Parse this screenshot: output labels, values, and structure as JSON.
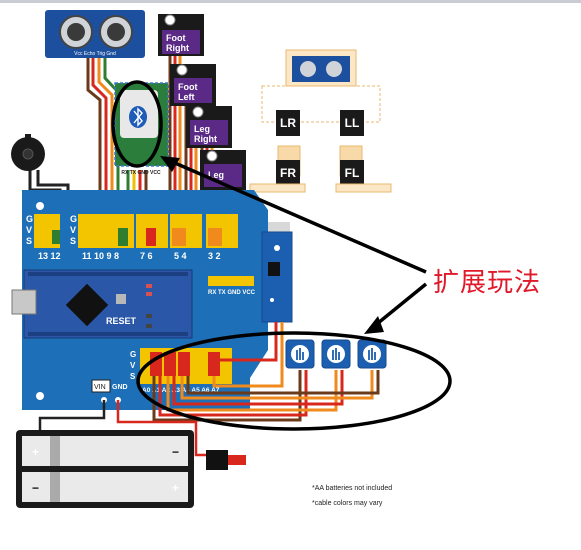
{
  "sensor": {
    "ultrasonic_pins": "Vcc Echo Trig Gnd",
    "bt_pins": "RX TX GND VCC"
  },
  "servos": [
    {
      "line1": "Foot",
      "line2": "Right"
    },
    {
      "line1": "Foot",
      "line2": "Left"
    },
    {
      "line1": "Leg",
      "line2": "Right"
    },
    {
      "line1": "Leg",
      "line2": ""
    }
  ],
  "robot_labels": [
    "LR",
    "LL",
    "FR",
    "FL"
  ],
  "board": {
    "gvs": [
      "G",
      "V",
      "S"
    ],
    "pin_groups": [
      "13 12",
      "11 10 9 8",
      "7 6",
      "5 4",
      "3 2"
    ],
    "reset_label": "RESET",
    "bt_header": "RX TX GND VCC",
    "analog_labels": "A0 A1 A2 A3 A4 A5 A6 A7",
    "vin_label": "VIN",
    "gnd_label": "GND"
  },
  "annotation": {
    "chinese_label": "扩展玩法"
  },
  "notes": {
    "batteries": "*AA batteries not included",
    "cables": "*cable colors may vary"
  },
  "battery_marks": [
    "+",
    "−",
    "−",
    "+"
  ],
  "colors": {
    "board_blue": "#1d6fb8",
    "nano_blue": "#2a57a8",
    "header_yellow": "#f2c500",
    "servo_black": "#1a1a1a",
    "servo_purple": "#5a2a86",
    "wire_orange": "#f08a1c",
    "wire_red": "#d8281e",
    "wire_brown": "#6b3a1a",
    "annotation_red": "#e0192a"
  }
}
